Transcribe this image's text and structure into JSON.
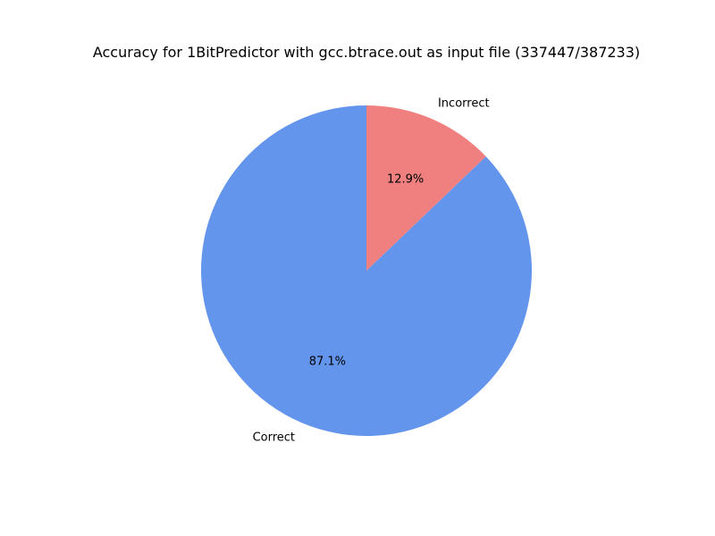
{
  "chart_data": {
    "type": "pie",
    "title": "Accuracy for 1BitPredictor with gcc.btrace.out as input file (337447/387233)",
    "start_angle_deg": 90,
    "direction": "counterclockwise",
    "slices": [
      {
        "label": "Correct",
        "value": 337447,
        "pct_label": "87.1%",
        "color": "#6495ED"
      },
      {
        "label": "Incorrect",
        "value": 49786,
        "pct_label": "12.9%",
        "color": "#F08080"
      }
    ],
    "legend": false
  }
}
